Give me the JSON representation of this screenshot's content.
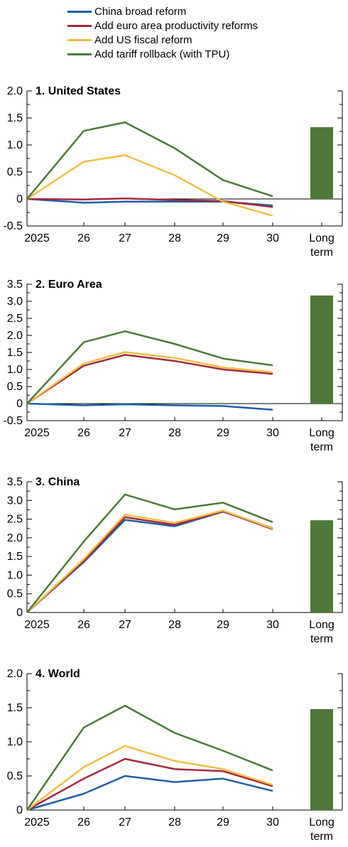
{
  "legend": [
    {
      "name": "China broad reform",
      "color": "#1f5fa8"
    },
    {
      "name": "Add euro area productivity reforms",
      "color": "#a52a3a"
    },
    {
      "name": "Add US fiscal reform",
      "color": "#f2be44"
    },
    {
      "name": "Add tariff rollback (with TPU)",
      "color": "#4d7a38"
    }
  ],
  "chart_data": [
    {
      "type": "line",
      "title": "1. United States",
      "categories": [
        "2025",
        "26",
        "27",
        "28",
        "29",
        "30"
      ],
      "bar_category": [
        "Long",
        "term"
      ],
      "ylim": [
        -0.5,
        2.0
      ],
      "y_ticks": [
        "-0.5",
        "0",
        "0.5",
        "1.0",
        "1.5",
        "2.0"
      ],
      "series": [
        {
          "name": "China broad reform",
          "color": "#1f5fa8",
          "values": [
            0,
            -0.07,
            -0.05,
            -0.05,
            -0.05,
            -0.12
          ]
        },
        {
          "name": "Add euro area productivity reforms",
          "color": "#a52a3a",
          "values": [
            0,
            -0.01,
            0.01,
            -0.02,
            -0.04,
            -0.15
          ]
        },
        {
          "name": "Add US fiscal reform",
          "color": "#f2be44",
          "values": [
            0,
            0.69,
            0.81,
            0.44,
            -0.05,
            -0.31
          ]
        },
        {
          "name": "Add tariff rollback (with TPU)",
          "color": "#4d7a38",
          "values": [
            0,
            1.26,
            1.42,
            0.94,
            0.35,
            0.05
          ]
        }
      ],
      "long_term": {
        "value": 1.33,
        "color": "#4d7a38"
      }
    },
    {
      "type": "line",
      "title": "2. Euro Area",
      "categories": [
        "2025",
        "26",
        "27",
        "28",
        "29",
        "30"
      ],
      "bar_category": [
        "Long",
        "term"
      ],
      "ylim": [
        -0.5,
        3.5
      ],
      "y_ticks": [
        "-0.5",
        "0",
        "0.5",
        "1.0",
        "1.5",
        "2.0",
        "2.5",
        "3.0",
        "3.5"
      ],
      "series": [
        {
          "name": "China broad reform",
          "color": "#1f5fa8",
          "values": [
            0,
            -0.05,
            -0.02,
            -0.05,
            -0.07,
            -0.18
          ]
        },
        {
          "name": "Add euro area productivity reforms",
          "color": "#a52a3a",
          "values": [
            0,
            1.11,
            1.43,
            1.25,
            1.0,
            0.87
          ]
        },
        {
          "name": "Add US fiscal reform",
          "color": "#f2be44",
          "values": [
            0,
            1.18,
            1.51,
            1.34,
            1.06,
            0.92
          ]
        },
        {
          "name": "Add tariff rollback (with TPU)",
          "color": "#4d7a38",
          "values": [
            0,
            1.8,
            2.12,
            1.75,
            1.32,
            1.12
          ]
        }
      ],
      "long_term": {
        "value": 3.17,
        "color": "#4d7a38"
      }
    },
    {
      "type": "line",
      "title": "3. China",
      "categories": [
        "2025",
        "26",
        "27",
        "28",
        "29",
        "30"
      ],
      "bar_category": [
        "Long",
        "term"
      ],
      "ylim": [
        0,
        3.5
      ],
      "y_ticks": [
        "0",
        "0.5",
        "1.0",
        "1.5",
        "2.0",
        "2.5",
        "3.0",
        "3.5"
      ],
      "series": [
        {
          "name": "China broad reform",
          "color": "#1f5fa8",
          "values": [
            0,
            1.35,
            2.48,
            2.31,
            2.7,
            2.26
          ]
        },
        {
          "name": "Add euro area productivity reforms",
          "color": "#a52a3a",
          "values": [
            0,
            1.38,
            2.55,
            2.35,
            2.71,
            2.23
          ]
        },
        {
          "name": "Add US fiscal reform",
          "color": "#f2be44",
          "values": [
            0,
            1.43,
            2.62,
            2.4,
            2.73,
            2.25
          ]
        },
        {
          "name": "Add tariff rollback (with TPU)",
          "color": "#4d7a38",
          "values": [
            0,
            1.9,
            3.16,
            2.76,
            2.94,
            2.42
          ]
        }
      ],
      "long_term": {
        "value": 2.47,
        "color": "#4d7a38"
      }
    },
    {
      "type": "line",
      "title": "4. World",
      "categories": [
        "2025",
        "26",
        "27",
        "28",
        "29",
        "30"
      ],
      "bar_category": [
        "Long",
        "term"
      ],
      "ylim": [
        0,
        2.0
      ],
      "y_ticks": [
        "0",
        "0.5",
        "1.0",
        "1.5",
        "2.0"
      ],
      "series": [
        {
          "name": "China broad reform",
          "color": "#1f5fa8",
          "values": [
            0,
            0.24,
            0.5,
            0.41,
            0.46,
            0.28
          ]
        },
        {
          "name": "Add euro area productivity reforms",
          "color": "#a52a3a",
          "values": [
            0,
            0.46,
            0.75,
            0.6,
            0.57,
            0.35
          ]
        },
        {
          "name": "Add US fiscal reform",
          "color": "#f2be44",
          "values": [
            0,
            0.63,
            0.94,
            0.72,
            0.6,
            0.37
          ]
        },
        {
          "name": "Add tariff rollback (with TPU)",
          "color": "#4d7a38",
          "values": [
            0,
            1.21,
            1.53,
            1.13,
            0.87,
            0.58
          ]
        }
      ],
      "long_term": {
        "value": 1.48,
        "color": "#4d7a38"
      }
    }
  ]
}
